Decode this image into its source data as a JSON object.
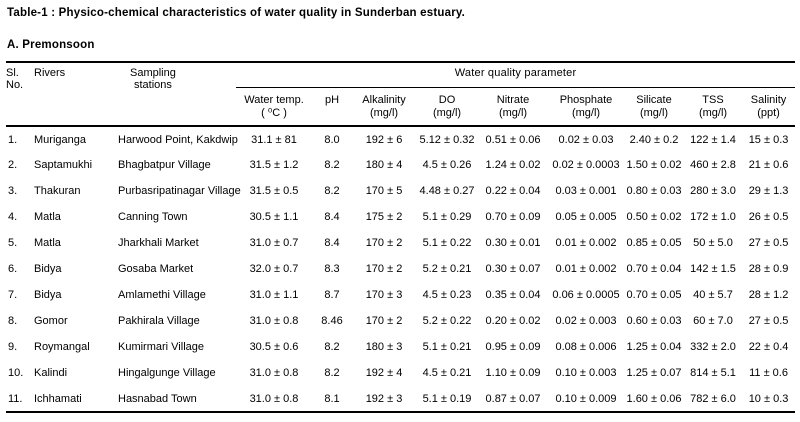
{
  "title": "Table-1 : Physico-chemical characteristics of water quality in Sunderban estuary.",
  "section": "A. Premonsoon",
  "table": {
    "left_headers": [
      {
        "line1": "Sl.",
        "line2": "No."
      },
      {
        "line1": "Rivers",
        "line2": ""
      },
      {
        "line1": "Sampling",
        "line2": "stations"
      }
    ],
    "group_header": "Water quality parameter",
    "param_headers": [
      {
        "name": "Water temp.",
        "unit": "( ⁰C )"
      },
      {
        "name": "pH",
        "unit": ""
      },
      {
        "name": "Alkalinity",
        "unit": "(mg/l)"
      },
      {
        "name": "DO",
        "unit": "(mg/l)"
      },
      {
        "name": "Nitrate",
        "unit": "(mg/l)"
      },
      {
        "name": "Phosphate",
        "unit": "(mg/l)"
      },
      {
        "name": "Silicate",
        "unit": "(mg/l)"
      },
      {
        "name": "TSS",
        "unit": "(mg/l)"
      },
      {
        "name": "Salinity",
        "unit": "(ppt)"
      }
    ],
    "rows": [
      {
        "sl": "1.",
        "river": "Muriganga",
        "station": "Harwood Point, Kakdwip",
        "values": [
          "31.1 ± 81",
          "8.0",
          "192 ± 6",
          "5.12 ± 0.32",
          "0.51 ± 0.06",
          "0.02 ± 0.03",
          "2.40 ± 0.2",
          "122 ± 1.4",
          "15 ± 0.3"
        ]
      },
      {
        "sl": "2.",
        "river": "Saptamukhi",
        "station": "Bhagbatpur Village",
        "values": [
          "31.5 ± 1.2",
          "8.2",
          "180 ± 4",
          "4.5 ± 0.26",
          "1.24 ± 0.02",
          "0.02 ± 0.0003",
          "1.50 ± 0.02",
          "460 ± 2.8",
          "21 ± 0.6"
        ]
      },
      {
        "sl": "3.",
        "river": "Thakuran",
        "station": "Purbasripatinagar Village",
        "values": [
          "31.5 ± 0.5",
          "8.2",
          "170 ± 5",
          "4.48 ± 0.27",
          "0.22 ± 0.04",
          "0.03 ± 0.001",
          "0.80 ± 0.03",
          "280 ± 3.0",
          "29 ± 1.3"
        ]
      },
      {
        "sl": "4.",
        "river": "Matla",
        "station": "Canning Town",
        "values": [
          "30.5 ± 1.1",
          "8.4",
          "175 ± 2",
          "5.1 ± 0.29",
          "0.70 ± 0.09",
          "0.05 ± 0.005",
          "0.50 ± 0.02",
          "172 ± 1.0",
          "26 ± 0.5"
        ]
      },
      {
        "sl": "5.",
        "river": "Matla",
        "station": "Jharkhali Market",
        "values": [
          "31.0 ± 0.7",
          "8.4",
          "170 ± 2",
          "5.1 ± 0.22",
          "0.30 ± 0.01",
          "0.01 ± 0.002",
          "0.85 ± 0.05",
          "50 ± 5.0",
          "27 ± 0.5"
        ]
      },
      {
        "sl": "6.",
        "river": "Bidya",
        "station": "Gosaba Market",
        "values": [
          "32.0 ± 0.7",
          "8.3",
          "170 ± 2",
          "5.2 ± 0.21",
          "0.30 ± 0.07",
          "0.01 ± 0.002",
          "0.70 ± 0.04",
          "142 ± 1.5",
          "28 ± 0.9"
        ]
      },
      {
        "sl": "7.",
        "river": "Bidya",
        "station": "Amlamethi Village",
        "values": [
          "31.0 ± 1.1",
          "8.7",
          "170 ± 3",
          "4.5 ± 0.23",
          "0.35 ± 0.04",
          "0.06 ± 0.0005",
          "0.70 ± 0.05",
          "40 ± 5.7",
          "28 ± 1.2"
        ]
      },
      {
        "sl": "8.",
        "river": "Gomor",
        "station": "Pakhirala Village",
        "values": [
          "31.0 ± 0.8",
          "8.46",
          "170 ± 2",
          "5.2 ± 0.22",
          "0.20 ± 0.02",
          "0.02 ± 0.003",
          "0.60 ± 0.03",
          "60 ± 7.0",
          "27 ± 0.5"
        ]
      },
      {
        "sl": "9.",
        "river": "Roymangal",
        "station": "Kumirmari Village",
        "values": [
          "30.5 ± 0.6",
          "8.2",
          "180 ± 3",
          "5.1 ± 0.21",
          "0.95 ± 0.09",
          "0.08 ± 0.006",
          "1.25 ± 0.04",
          "332 ± 2.0",
          "22 ± 0.4"
        ]
      },
      {
        "sl": "10.",
        "river": "Kalindi",
        "station": "Hingalgunge Village",
        "values": [
          "31.0 ± 0.8",
          "8.2",
          "192 ± 4",
          "4.5 ± 0.21",
          "1.10 ± 0.09",
          "0.10 ± 0.003",
          "1.25 ± 0.07",
          "814 ± 5.1",
          "11 ± 0.6"
        ]
      },
      {
        "sl": "11.",
        "river": "Ichhamati",
        "station": "Hasnabad Town",
        "values": [
          "31.0 ± 0.8",
          "8.1",
          "192 ± 3",
          "5.1 ± 0.19",
          "0.87 ± 0.07",
          "0.10 ± 0.009",
          "1.60 ± 0.06",
          "782 ± 6.0",
          "10 ± 0.3"
        ]
      }
    ]
  }
}
